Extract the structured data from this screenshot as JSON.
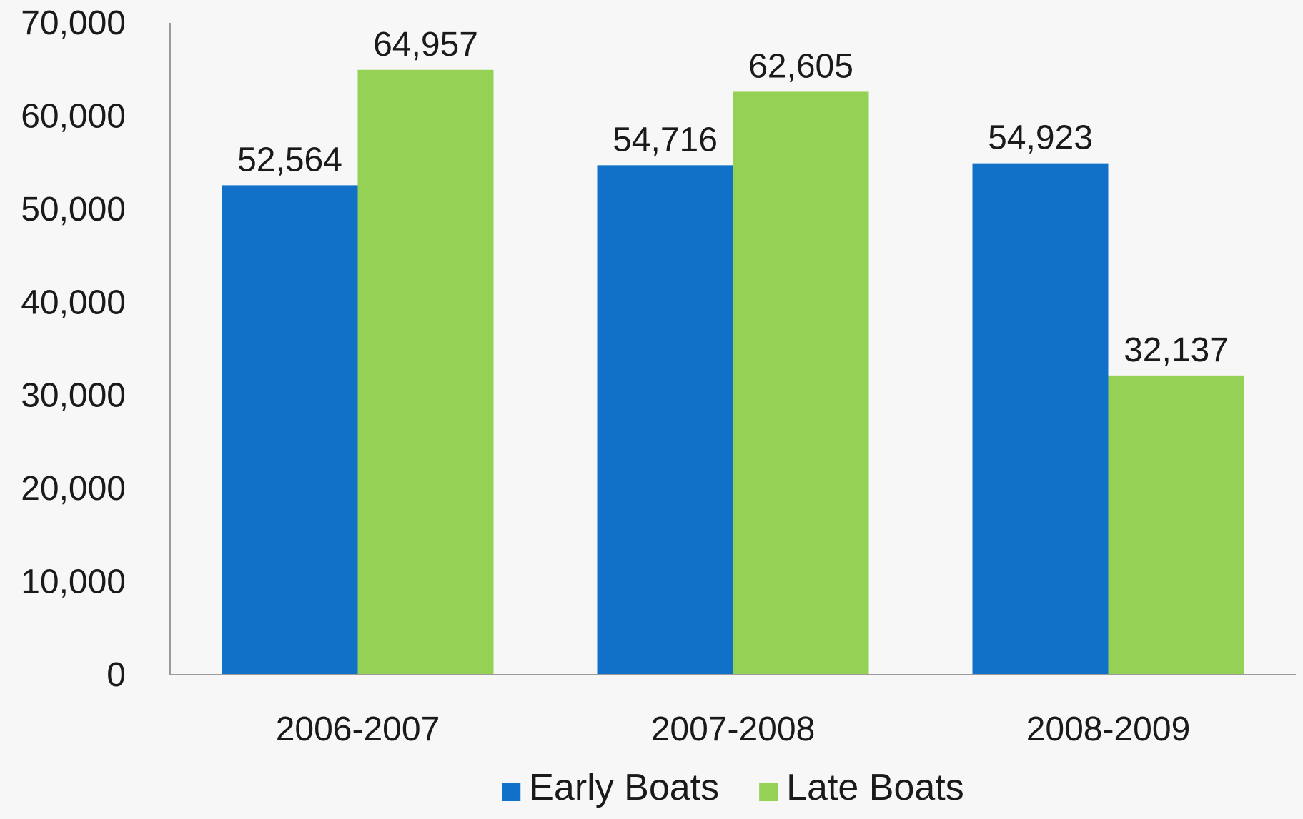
{
  "chart_data": {
    "type": "bar",
    "title": "",
    "xlabel": "",
    "ylabel": "",
    "categories": [
      "2006-2007",
      "2007-2008",
      "2008-2009"
    ],
    "series": [
      {
        "name": "Early Boats",
        "color": "#1170c8",
        "values": [
          52564,
          54716,
          54923
        ]
      },
      {
        "name": "Late Boats",
        "color": "#95d155",
        "values": [
          64957,
          62605,
          32137
        ]
      }
    ],
    "data_labels": [
      [
        "52,564",
        "54,716",
        "54,923"
      ],
      [
        "64,957",
        "62,605",
        "32,137"
      ]
    ],
    "ylim": [
      0,
      70000
    ],
    "yticks": [
      0,
      10000,
      20000,
      30000,
      40000,
      50000,
      60000,
      70000
    ],
    "ytick_labels": [
      "0",
      "10,000",
      "20,000",
      "30,000",
      "40,000",
      "50,000",
      "60,000",
      "70,000"
    ],
    "grid": false,
    "legend": "bottom-center"
  }
}
